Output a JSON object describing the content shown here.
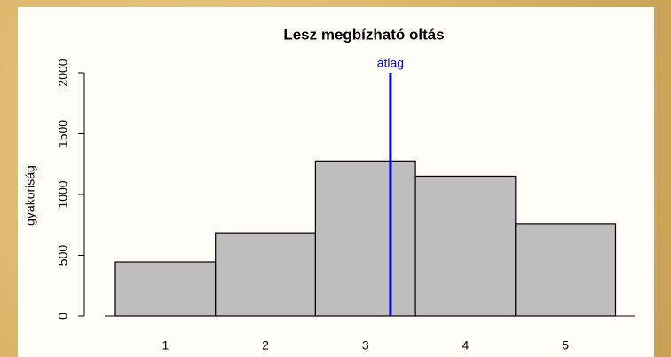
{
  "chart_data": {
    "type": "bar",
    "title": "Lesz megbízható oltás",
    "y_label": "gyakoriság",
    "categories": [
      "1",
      "2",
      "3",
      "4",
      "5"
    ],
    "values": [
      445,
      685,
      1275,
      1150,
      760
    ],
    "color": "#bebebe",
    "edgecolor": "#000000",
    "ylim": [
      0,
      2000
    ],
    "yticks": [
      0,
      500,
      1000,
      1500,
      2000
    ],
    "annotations": [
      {
        "label": "átlag",
        "x": 3.25,
        "color": "#0000ee"
      }
    ]
  }
}
